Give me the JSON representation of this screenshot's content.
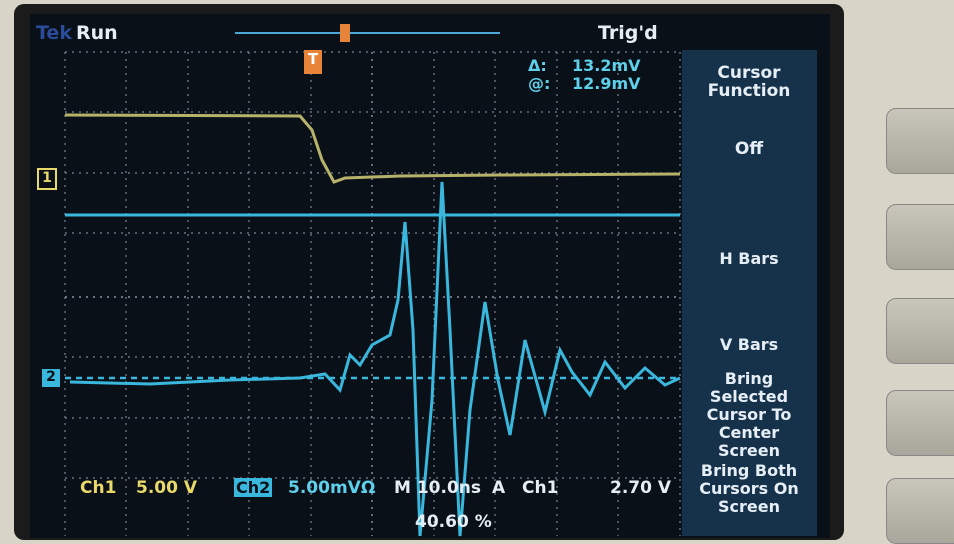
{
  "header": {
    "brand": "Tek",
    "state": "Run",
    "trigger_status": "Trig'd"
  },
  "cursor_readout": {
    "delta_label": "Δ:",
    "delta_value": "13.2mV",
    "at_label": "@:",
    "at_value": "12.9mV"
  },
  "menu": {
    "title": "Cursor Function",
    "items": [
      "Off",
      "H Bars",
      "V Bars",
      "Bring Selected Cursor To Center Screen",
      "Bring Both Cursors On Screen"
    ]
  },
  "status": {
    "ch1_label": "Ch1",
    "ch1_scale": "5.00 V",
    "ch2_label": "Ch2",
    "ch2_scale": "5.00mVΩ",
    "timebase": "M 10.0ns",
    "trigger_mode": "A",
    "trigger_source": "Ch1",
    "trigger_level": "2.70 V",
    "trigger_position": "40.60 %"
  },
  "markers": {
    "ch1": "1",
    "ch2": "2",
    "trigger": "T"
  }
}
